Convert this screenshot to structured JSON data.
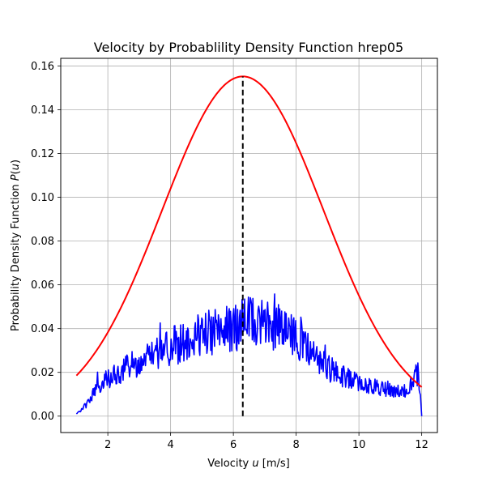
{
  "chart_data": {
    "type": "line",
    "title": "Velocity by Probablility Density Function hrep05",
    "xlabel_prefix": "Velocity ",
    "xlabel_symbol": "u",
    "xlabel_suffix": " [m/s]",
    "ylabel_prefix": "Probability Density Function ",
    "ylabel_symbol": "P",
    "ylabel_open": "(",
    "ylabel_arg": "u",
    "ylabel_close": ")",
    "xlim": [
      0.5,
      12.5
    ],
    "ylim": [
      -0.0075,
      0.1635
    ],
    "xticks": [
      2,
      4,
      6,
      8,
      10,
      12
    ],
    "yticks": [
      0.0,
      0.02,
      0.04,
      0.06,
      0.08,
      0.1,
      0.12,
      0.14,
      0.16
    ],
    "grid": true,
    "legend": "none",
    "series": [
      {
        "kind": "normal-pdf-curve",
        "color": "#ff0000",
        "x_range": [
          1.0,
          12.0
        ],
        "mean": 6.3,
        "std": 2.57
      },
      {
        "kind": "empirical-pdf",
        "color": "#0000ff",
        "x_range": [
          1.0,
          12.0
        ],
        "anchor_x": [
          1.0,
          1.3,
          1.6,
          2.0,
          2.5,
          3.0,
          3.5,
          4.0,
          4.5,
          5.0,
          5.5,
          6.0,
          6.5,
          7.0,
          7.5,
          8.0,
          8.5,
          9.0,
          9.5,
          10.0,
          10.5,
          11.0,
          11.5,
          11.9,
          12.0
        ],
        "anchor_y": [
          0.001,
          0.005,
          0.012,
          0.017,
          0.021,
          0.025,
          0.028,
          0.031,
          0.034,
          0.037,
          0.039,
          0.041,
          0.043,
          0.043,
          0.041,
          0.036,
          0.029,
          0.022,
          0.018,
          0.015,
          0.013,
          0.012,
          0.012,
          0.02,
          0.0
        ]
      },
      {
        "kind": "mean-line",
        "color": "#000000",
        "x": 6.3,
        "y_range": [
          0.0,
          0.1552
        ]
      }
    ]
  }
}
